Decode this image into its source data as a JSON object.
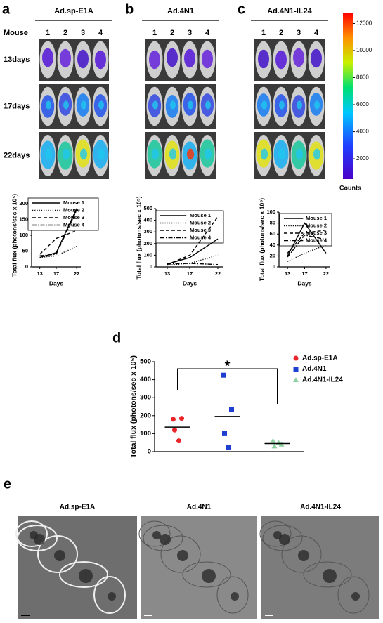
{
  "panel_labels": [
    "a",
    "b",
    "c",
    "d",
    "e"
  ],
  "imaging": {
    "groups": [
      "Ad.sp-E1A",
      "Ad.4N1",
      "Ad.4N1-IL24"
    ],
    "mouse_label": "Mouse",
    "mouse_numbers": [
      "1",
      "2",
      "3",
      "4"
    ],
    "days": [
      "13days",
      "17days",
      "22days"
    ],
    "colorbar": {
      "lim": [
        500,
        12800
      ],
      "ticks": [
        2000,
        4000,
        6000,
        8000,
        10000,
        12000
      ],
      "label": "Counts"
    }
  },
  "chart_data": [
    {
      "type": "line",
      "x": [
        13,
        17,
        22
      ],
      "xlim": [
        11,
        23
      ],
      "xticks": [
        13,
        17,
        22
      ],
      "ylim": [
        0,
        200
      ],
      "yticks": [
        0,
        50,
        100,
        150,
        200
      ],
      "x_label": "Days",
      "y_label": "Total flux (photons/sec x 10⁵)",
      "series": [
        {
          "name": "Mouse 1",
          "color": "#000000",
          "style": "solid",
          "values": [
            30,
            45,
            185
          ]
        },
        {
          "name": "Mouse 2",
          "color": "#000000",
          "style": "dotted",
          "values": [
            30,
            35,
            65
          ]
        },
        {
          "name": "Mouse 3",
          "color": "#000000",
          "style": "dashed",
          "values": [
            40,
            90,
            115
          ]
        },
        {
          "name": "Mouse 4",
          "color": "#000000",
          "style": "dashdot",
          "values": [
            35,
            40,
            180
          ]
        }
      ]
    },
    {
      "type": "line",
      "x": [
        13,
        17,
        22
      ],
      "xlim": [
        11,
        23
      ],
      "xticks": [
        13,
        17,
        22
      ],
      "ylim": [
        0,
        500
      ],
      "yticks": [
        0,
        100,
        200,
        300,
        400,
        500
      ],
      "x_label": "Days",
      "y_label": "Total flux (photons/sec x 10⁵)",
      "series": [
        {
          "name": "Mouse 1",
          "color": "#000000",
          "style": "solid",
          "values": [
            25,
            80,
            240
          ]
        },
        {
          "name": "Mouse 2",
          "color": "#000000",
          "style": "dotted",
          "values": [
            15,
            30,
            100
          ]
        },
        {
          "name": "Mouse 3",
          "color": "#000000",
          "style": "dashed",
          "values": [
            20,
            100,
            430
          ]
        },
        {
          "name": "Mouse 4",
          "color": "#000000",
          "style": "dashdot",
          "values": [
            25,
            30,
            20
          ]
        }
      ]
    },
    {
      "type": "line",
      "x": [
        13,
        17,
        22
      ],
      "xlim": [
        11,
        23
      ],
      "xticks": [
        13,
        17,
        22
      ],
      "ylim": [
        0,
        100
      ],
      "yticks": [
        0,
        20,
        40,
        60,
        80,
        100
      ],
      "x_label": "Days",
      "y_label": "Total flux (photons/sec x 10⁵)",
      "series": [
        {
          "name": "Mouse 1",
          "color": "#000000",
          "style": "solid",
          "values": [
            20,
            80,
            25
          ]
        },
        {
          "name": "Mouse 2",
          "color": "#000000",
          "style": "dotted",
          "values": [
            10,
            25,
            40
          ]
        },
        {
          "name": "Mouse 3",
          "color": "#000000",
          "style": "dashed",
          "values": [
            25,
            62,
            67
          ]
        },
        {
          "name": "Mouse 4",
          "color": "#000000",
          "style": "dashdot",
          "values": [
            18,
            58,
            50
          ]
        }
      ]
    },
    {
      "type": "scatter",
      "ylim": [
        0,
        500
      ],
      "yticks": [
        0,
        100,
        200,
        300,
        400,
        500
      ],
      "y_label": "Total flux (photons/sec x 10⁵)",
      "annotation": "*",
      "series": [
        {
          "name": "Ad.sp-E1A",
          "color": "#e8262a",
          "marker": "circle",
          "values": [
            180,
            185,
            120,
            60
          ],
          "mean": 136
        },
        {
          "name": "Ad.4N1",
          "color": "#1f3fd1",
          "marker": "square",
          "values": [
            425,
            235,
            100,
            25
          ],
          "mean": 196
        },
        {
          "name": "Ad.4N1-IL24",
          "color": "#8fd19e",
          "marker": "triangle",
          "values": [
            60,
            40,
            30,
            50
          ],
          "mean": 45
        }
      ]
    }
  ],
  "em": {
    "titles": [
      "Ad.sp-E1A",
      "Ad.4N1",
      "Ad.4N1-IL24"
    ]
  }
}
